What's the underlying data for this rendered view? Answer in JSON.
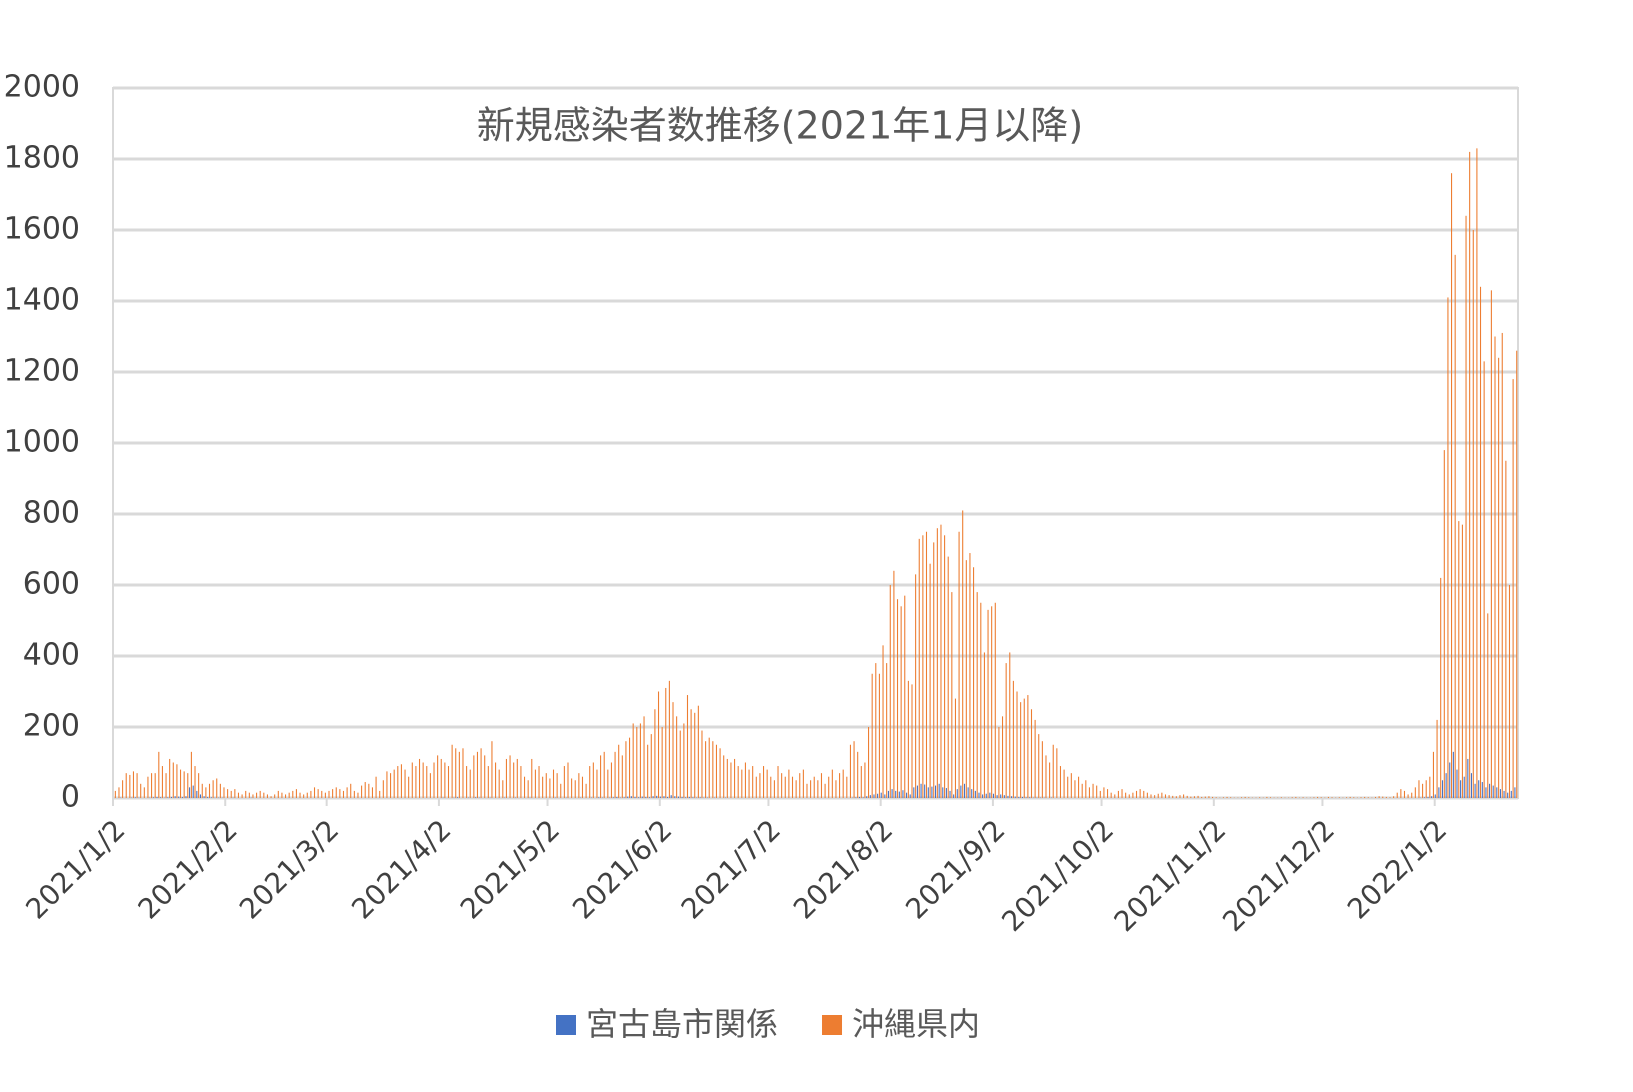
{
  "chart_data": {
    "type": "bar",
    "title": "新規感染者数推移(2021年1月以降)",
    "categories": [
      "2021/1/2",
      null,
      null,
      null,
      null,
      null,
      null,
      null,
      null,
      null,
      null,
      null,
      null,
      null,
      null,
      null,
      null,
      null,
      null,
      null,
      null,
      null,
      null,
      null,
      null,
      null,
      null,
      null,
      null,
      null,
      null,
      "2021/2/2",
      null,
      null,
      null,
      null,
      null,
      null,
      null,
      null,
      null,
      null,
      null,
      null,
      null,
      null,
      null,
      null,
      null,
      null,
      null,
      null,
      null,
      null,
      null,
      null,
      null,
      null,
      null,
      "2021/3/2",
      null,
      null,
      null,
      null,
      null,
      null,
      null,
      null,
      null,
      null,
      null,
      null,
      null,
      null,
      null,
      null,
      null,
      null,
      null,
      null,
      null,
      null,
      null,
      null,
      null,
      null,
      null,
      null,
      null,
      null,
      "2021/4/2",
      null,
      null,
      null,
      null,
      null,
      null,
      null,
      null,
      null,
      null,
      null,
      null,
      null,
      null,
      null,
      null,
      null,
      null,
      null,
      null,
      null,
      null,
      null,
      null,
      null,
      null,
      null,
      null,
      null,
      "2021/5/2",
      null,
      null,
      null,
      null,
      null,
      null,
      null,
      null,
      null,
      null,
      null,
      null,
      null,
      null,
      null,
      null,
      null,
      null,
      null,
      null,
      null,
      null,
      null,
      null,
      null,
      null,
      null,
      null,
      null,
      null,
      "2021/6/2",
      null,
      null,
      null,
      null,
      null,
      null,
      null,
      null,
      null,
      null,
      null,
      null,
      null,
      null,
      null,
      null,
      null,
      null,
      null,
      null,
      null,
      null,
      null,
      null,
      null,
      null,
      null,
      null,
      null,
      "2021/7/2",
      null,
      null,
      null,
      null,
      null,
      null,
      null,
      null,
      null,
      null,
      null,
      null,
      null,
      null,
      null,
      null,
      null,
      null,
      null,
      null,
      null,
      null,
      null,
      null,
      null,
      null,
      null,
      null,
      null,
      null,
      "2021/8/2",
      null,
      null,
      null,
      null,
      null,
      null,
      null,
      null,
      null,
      null,
      null,
      null,
      null,
      null,
      null,
      null,
      null,
      null,
      null,
      null,
      null,
      null,
      null,
      null,
      null,
      null,
      null,
      null,
      null,
      null,
      "2021/9/2",
      null,
      null,
      null,
      null,
      null,
      null,
      null,
      null,
      null,
      null,
      null,
      null,
      null,
      null,
      null,
      null,
      null,
      null,
      null,
      null,
      null,
      null,
      null,
      null,
      null,
      null,
      null,
      null,
      null,
      "2021/10/2",
      null,
      null,
      null,
      null,
      null,
      null,
      null,
      null,
      null,
      null,
      null,
      null,
      null,
      null,
      null,
      null,
      null,
      null,
      null,
      null,
      null,
      null,
      null,
      null,
      null,
      null,
      null,
      null,
      null,
      null,
      "2021/11/2",
      null,
      null,
      null,
      null,
      null,
      null,
      null,
      null,
      null,
      null,
      null,
      null,
      null,
      null,
      null,
      null,
      null,
      null,
      null,
      null,
      null,
      null,
      null,
      null,
      null,
      null,
      null,
      null,
      null,
      "2021/12/2",
      null,
      null,
      null,
      null,
      null,
      null,
      null,
      null,
      null,
      null,
      null,
      null,
      null,
      null,
      null,
      null,
      null,
      null,
      null,
      null,
      null,
      null,
      null,
      null,
      null,
      null,
      null,
      null,
      null,
      null,
      "2022/1/2",
      null,
      null,
      null,
      null,
      null,
      null,
      null,
      null,
      null,
      null,
      null,
      null,
      null,
      null,
      null,
      null,
      null,
      null,
      null,
      null,
      null,
      null
    ],
    "series": [
      {
        "name": "宮古島市関係",
        "color": "#4472C4",
        "values": [
          0,
          0,
          1,
          0,
          0,
          1,
          2,
          1,
          0,
          0,
          1,
          2,
          3,
          2,
          1,
          2,
          3,
          5,
          4,
          3,
          5,
          30,
          35,
          20,
          10,
          5,
          3,
          2,
          1,
          1,
          1,
          0,
          0,
          1,
          0,
          0,
          0,
          0,
          1,
          0,
          0,
          0,
          0,
          0,
          0,
          0,
          0,
          0,
          0,
          0,
          0,
          0,
          0,
          0,
          0,
          0,
          0,
          0,
          0,
          0,
          0,
          0,
          0,
          0,
          0,
          0,
          0,
          0,
          0,
          0,
          0,
          0,
          0,
          0,
          0,
          0,
          0,
          0,
          0,
          0,
          0,
          0,
          0,
          0,
          0,
          0,
          0,
          0,
          0,
          0,
          0,
          1,
          0,
          0,
          1,
          2,
          0,
          0,
          1,
          0,
          2,
          1,
          0,
          0,
          1,
          0,
          0,
          0,
          1,
          0,
          0,
          1,
          0,
          0,
          0,
          1,
          0,
          0,
          0,
          0,
          0,
          0,
          1,
          0,
          0,
          1,
          0,
          0,
          0,
          1,
          0,
          0,
          1,
          0,
          2,
          1,
          0,
          1,
          2,
          3,
          1,
          2,
          4,
          5,
          3,
          2,
          4,
          3,
          2,
          5,
          6,
          4,
          5,
          3,
          8,
          5,
          4,
          3,
          2,
          3,
          2,
          1,
          2,
          1,
          1,
          0,
          1,
          0,
          0,
          1,
          0,
          0,
          0,
          0,
          0,
          0,
          0,
          0,
          0,
          0,
          0,
          0,
          0,
          0,
          0,
          0,
          0,
          0,
          0,
          0,
          0,
          0,
          0,
          0,
          0,
          0,
          0,
          0,
          0,
          0,
          0,
          0,
          0,
          0,
          1,
          2,
          3,
          2,
          5,
          8,
          10,
          12,
          15,
          10,
          20,
          25,
          20,
          18,
          22,
          15,
          10,
          30,
          35,
          40,
          38,
          30,
          32,
          35,
          40,
          30,
          28,
          20,
          10,
          25,
          35,
          40,
          30,
          25,
          20,
          15,
          10,
          12,
          15,
          12,
          8,
          10,
          8,
          6,
          5,
          4,
          3,
          3,
          2,
          2,
          1,
          1,
          1,
          1,
          0,
          1,
          0,
          0,
          0,
          0,
          0,
          0,
          0,
          0,
          0,
          0,
          0,
          0,
          0,
          0,
          0,
          0,
          0,
          0,
          0,
          0,
          0,
          0,
          0,
          0,
          0,
          0,
          0,
          0,
          0,
          0,
          0,
          0,
          0,
          0,
          0,
          0,
          0,
          0,
          0,
          0,
          0,
          0,
          0,
          0,
          0,
          0,
          0,
          0,
          0,
          0,
          0,
          0,
          0,
          0,
          0,
          0,
          0,
          0,
          0,
          0,
          0,
          0,
          0,
          0,
          0,
          0,
          0,
          0,
          0,
          0,
          0,
          0,
          0,
          0,
          0,
          0,
          0,
          0,
          0,
          0,
          0,
          0,
          0,
          0,
          0,
          0,
          0,
          0,
          0,
          0,
          0,
          0,
          0,
          0,
          0,
          0,
          0,
          0,
          0,
          0,
          0,
          1,
          2,
          3,
          5,
          10,
          30,
          50,
          70,
          100,
          130,
          80,
          50,
          60,
          110,
          70,
          40,
          50,
          45,
          30,
          40,
          35,
          30,
          25,
          20,
          15,
          20,
          30
        ]
      },
      {
        "name": "沖縄県内",
        "color": "#ED7D31",
        "values": [
          20,
          30,
          50,
          70,
          65,
          75,
          70,
          40,
          30,
          60,
          70,
          70,
          130,
          90,
          70,
          110,
          100,
          95,
          80,
          75,
          70,
          130,
          90,
          70,
          40,
          30,
          40,
          50,
          55,
          40,
          30,
          25,
          20,
          25,
          15,
          10,
          20,
          15,
          10,
          15,
          20,
          15,
          10,
          5,
          10,
          20,
          15,
          10,
          15,
          20,
          25,
          15,
          10,
          15,
          20,
          30,
          25,
          20,
          15,
          20,
          25,
          30,
          25,
          20,
          30,
          40,
          20,
          15,
          35,
          45,
          40,
          30,
          60,
          20,
          50,
          75,
          70,
          80,
          90,
          95,
          80,
          60,
          100,
          90,
          110,
          100,
          90,
          70,
          100,
          120,
          110,
          100,
          90,
          150,
          140,
          130,
          140,
          90,
          80,
          120,
          130,
          140,
          120,
          90,
          160,
          100,
          80,
          50,
          110,
          120,
          100,
          110,
          90,
          60,
          50,
          110,
          80,
          90,
          60,
          70,
          55,
          80,
          70,
          40,
          90,
          100,
          55,
          50,
          70,
          60,
          40,
          90,
          100,
          80,
          120,
          130,
          80,
          100,
          130,
          150,
          120,
          160,
          170,
          210,
          200,
          210,
          230,
          150,
          180,
          250,
          300,
          200,
          310,
          330,
          270,
          230,
          190,
          210,
          290,
          250,
          240,
          260,
          190,
          160,
          170,
          160,
          150,
          140,
          120,
          110,
          100,
          110,
          90,
          80,
          100,
          80,
          90,
          60,
          70,
          90,
          80,
          60,
          50,
          90,
          70,
          60,
          80,
          60,
          50,
          70,
          80,
          40,
          50,
          60,
          50,
          70,
          40,
          60,
          80,
          50,
          70,
          80,
          60,
          150,
          160,
          130,
          90,
          100,
          200,
          350,
          380,
          350,
          430,
          380,
          600,
          640,
          560,
          540,
          570,
          330,
          320,
          630,
          730,
          740,
          750,
          660,
          720,
          760,
          770,
          740,
          680,
          580,
          280,
          750,
          810,
          670,
          690,
          650,
          580,
          550,
          410,
          530,
          540,
          550,
          200,
          230,
          380,
          410,
          330,
          300,
          270,
          280,
          290,
          250,
          220,
          180,
          160,
          120,
          100,
          150,
          140,
          90,
          80,
          60,
          70,
          50,
          60,
          40,
          50,
          30,
          40,
          35,
          20,
          30,
          25,
          15,
          10,
          20,
          25,
          15,
          10,
          15,
          20,
          25,
          20,
          15,
          10,
          8,
          12,
          15,
          10,
          8,
          6,
          5,
          8,
          10,
          6,
          4,
          5,
          6,
          3,
          4,
          5,
          3,
          2,
          1,
          2,
          3,
          2,
          1,
          1,
          2,
          3,
          2,
          1,
          1,
          2,
          1,
          3,
          2,
          1,
          1,
          2,
          1,
          1,
          2,
          3,
          1,
          2,
          1,
          1,
          2,
          3,
          2,
          1,
          3,
          2,
          1,
          2,
          1,
          2,
          3,
          2,
          1,
          2,
          3,
          2,
          1,
          3,
          5,
          4,
          3,
          2,
          5,
          15,
          25,
          20,
          10,
          15,
          30,
          50,
          40,
          50,
          60,
          130,
          220,
          620,
          980,
          1410,
          1760,
          1530,
          780,
          770,
          1640,
          1820,
          1600,
          1830,
          1440,
          1230,
          520,
          1430,
          1300,
          1240,
          1310,
          950,
          600,
          1180,
          1260
        ]
      }
    ],
    "ylim": [
      0,
      2000
    ],
    "yticks": [
      0,
      200,
      400,
      600,
      800,
      1000,
      1200,
      1400,
      1600,
      1800,
      2000
    ],
    "grid": true,
    "legend": "bottom"
  }
}
